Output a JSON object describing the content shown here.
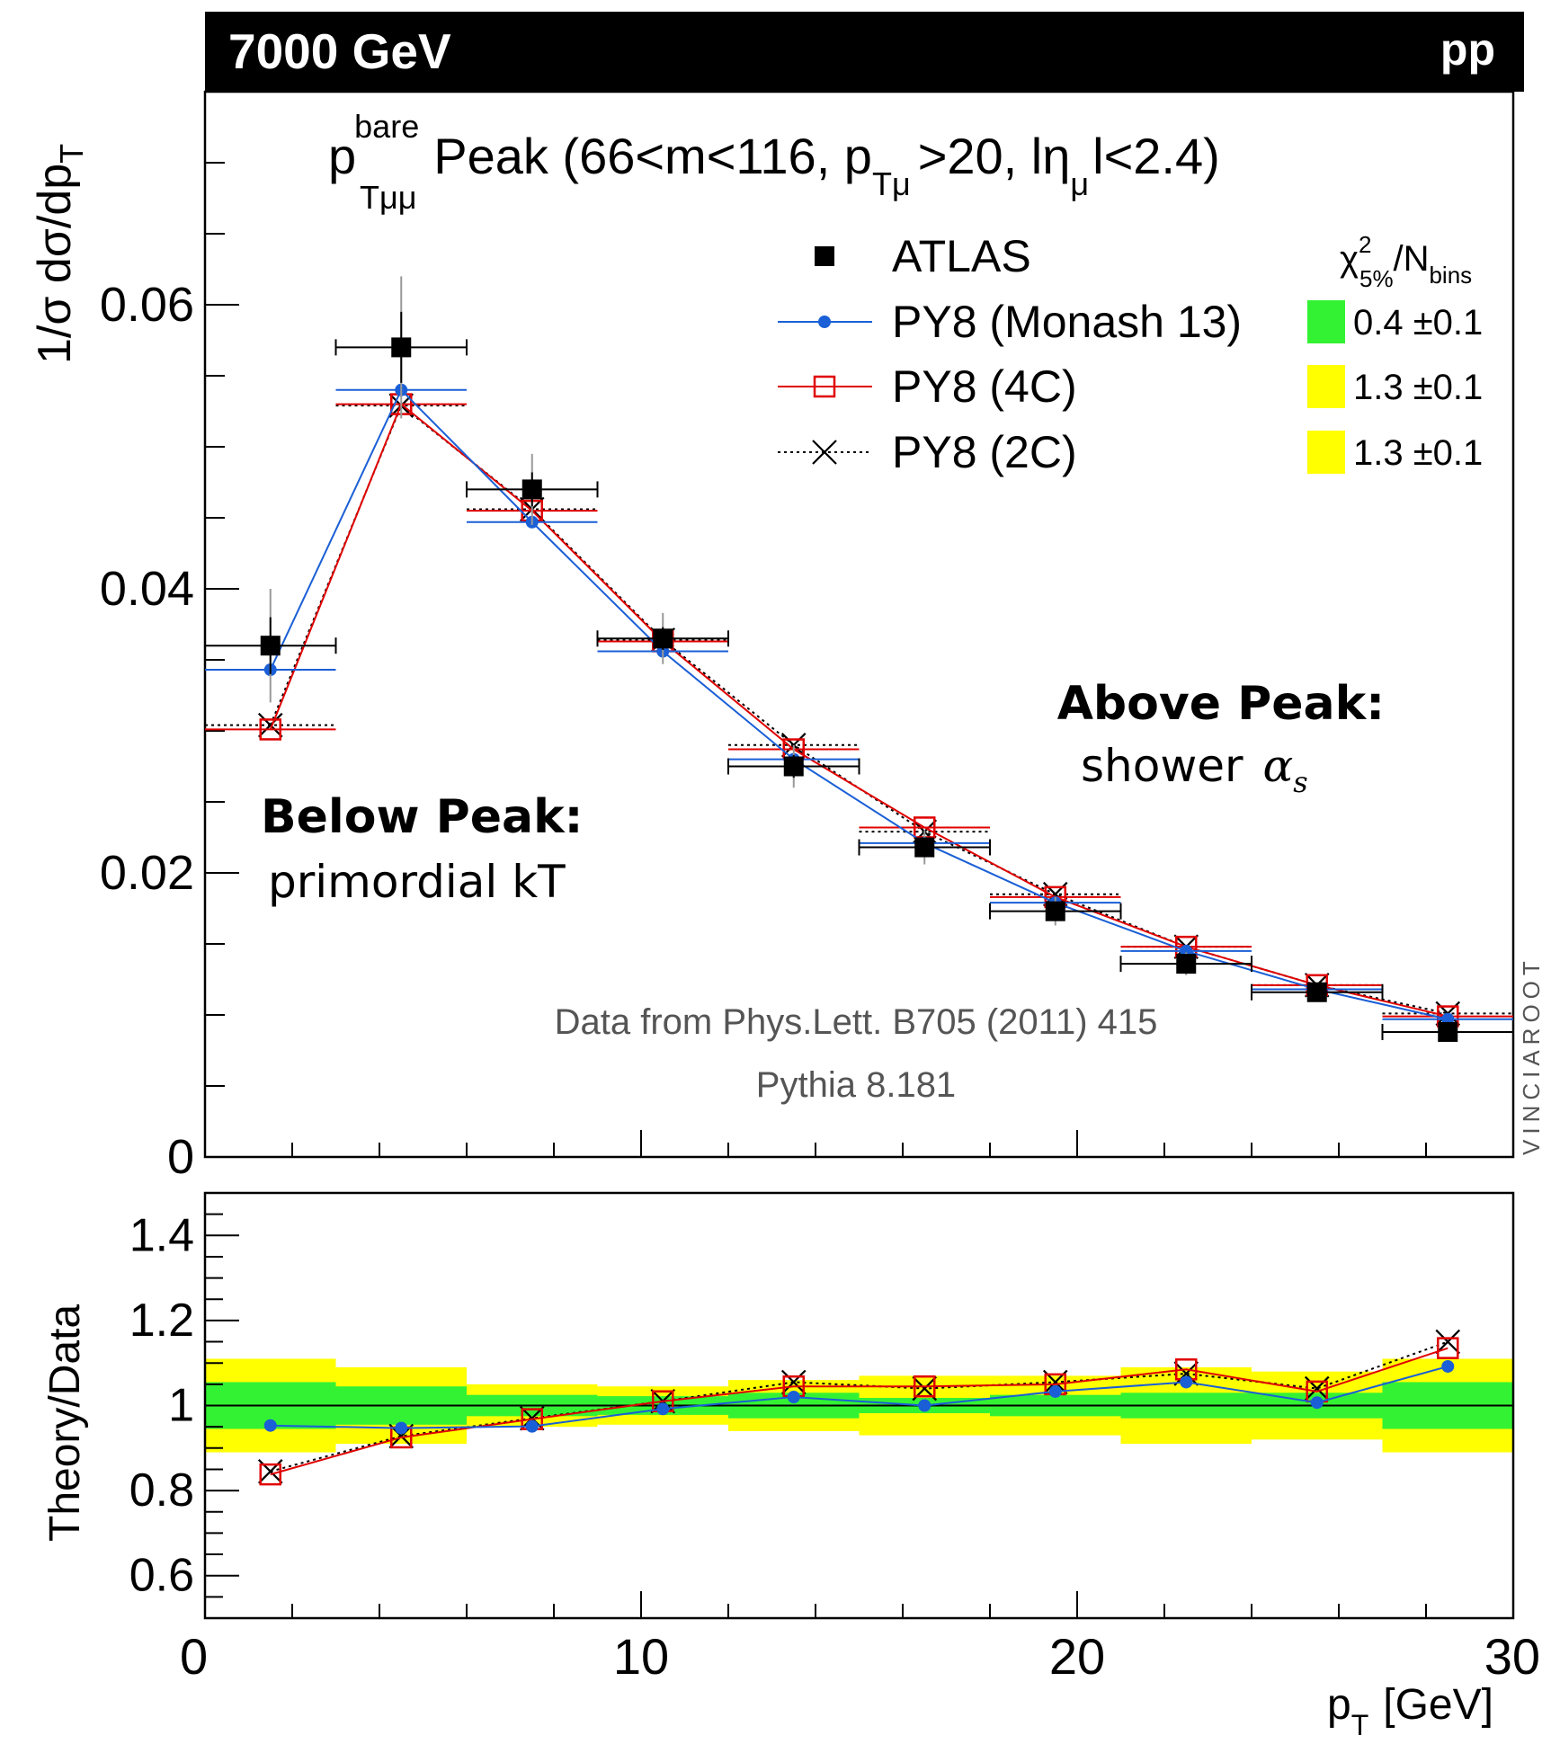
{
  "header": {
    "energy": "7000 GeV",
    "beam": "pp"
  },
  "colors": {
    "data": "#000000",
    "monash": "#1a5fd6",
    "c4": "#e00000",
    "c2": "#000000",
    "band_inner": "#33f233",
    "band_outer": "#ffff00",
    "header_bg": "#000000"
  },
  "title": {
    "main_p": "p",
    "main_sup": "bare",
    "main_sub": "Tμμ",
    "main_rest": "Peak (66<m<116, p",
    "sub2": "Tμ",
    "rest2": ">20, lη",
    "sub3": "μ",
    "rest3": "l<2.4)"
  },
  "chi2_header": {
    "chi": "χ",
    "sup": "2",
    "sub": "5%",
    "n": "/N",
    "nsub": "bins"
  },
  "legend": [
    {
      "key": "data",
      "label": "ATLAS",
      "marker": "square-filled"
    },
    {
      "key": "monash",
      "label": "PY8 (Monash 13)",
      "marker": "circle-filled",
      "chi2": "0.4 ±0.1",
      "badge": "green"
    },
    {
      "key": "c4",
      "label": "PY8 (4C)",
      "marker": "square-open",
      "chi2": "1.3 ±0.1",
      "badge": "yellow"
    },
    {
      "key": "c2",
      "label": "PY8 (2C)",
      "marker": "cross",
      "chi2": "1.3 ±0.1",
      "badge": "yellow"
    }
  ],
  "annotations": {
    "above_peak_title": "Above Peak:",
    "above_peak_text": "shower",
    "above_peak_symbol": "α",
    "above_peak_sub": "s",
    "below_peak_title": "Below Peak:",
    "below_peak_text": "primordial kT",
    "source_1": "Data from Phys.Lett. B705 (2011) 415",
    "source_2": "Pythia 8.181",
    "watermark": "VINCIAROOT"
  },
  "chart_data": [
    {
      "type": "scatter",
      "panel": "main",
      "ylabel": "1/σ dσ/dp",
      "ylabel_sub": "T",
      "xlim": [
        0,
        30
      ],
      "ylim": [
        0,
        0.075
      ],
      "yticks": [
        0,
        0.02,
        0.04,
        0.06
      ],
      "ytick_labels": [
        "0",
        "0.02",
        "0.04",
        "0.06"
      ],
      "legend_position": "top-right",
      "bins": [
        [
          0,
          3
        ],
        [
          3,
          6
        ],
        [
          6,
          9
        ],
        [
          9,
          12
        ],
        [
          12,
          15
        ],
        [
          15,
          18
        ],
        [
          18,
          21
        ],
        [
          21,
          24
        ],
        [
          24,
          27
        ],
        [
          27,
          30
        ]
      ],
      "x": [
        1.5,
        4.5,
        7.5,
        10.5,
        13.5,
        16.5,
        19.5,
        22.5,
        25.5,
        28.5
      ],
      "series": [
        {
          "name": "ATLAS",
          "key": "data",
          "values": [
            0.036,
            0.057,
            0.047,
            0.0365,
            0.0275,
            0.0218,
            0.0173,
            0.0136,
            0.0116,
            0.0088
          ],
          "stat_err": [
            0.002,
            0.0025,
            0.0012,
            0.0008,
            0.0008,
            0.0004,
            0.0004,
            0.0003,
            0.0003,
            0.0003
          ],
          "total_err": [
            0.004,
            0.005,
            0.0025,
            0.0018,
            0.0015,
            0.0012,
            0.001,
            0.0008,
            0.0006,
            0.0005
          ]
        },
        {
          "name": "PY8 (Monash 13)",
          "key": "monash",
          "values": [
            0.0343,
            0.054,
            0.0447,
            0.0356,
            0.028,
            0.0221,
            0.0179,
            0.0145,
            0.0118,
            0.0097
          ]
        },
        {
          "name": "PY8 (4C)",
          "key": "c4",
          "values": [
            0.0301,
            0.053,
            0.0455,
            0.0363,
            0.0287,
            0.0232,
            0.0183,
            0.0148,
            0.0121,
            0.0099
          ]
        },
        {
          "name": "PY8 (2C)",
          "key": "c2",
          "values": [
            0.0304,
            0.0529,
            0.0456,
            0.0364,
            0.029,
            0.0229,
            0.0185,
            0.0148,
            0.0121,
            0.0101
          ]
        }
      ]
    },
    {
      "type": "scatter",
      "panel": "ratio",
      "xlabel": "p",
      "xlabel_sub": "T",
      "xlabel_unit": "[GeV]",
      "ylabel": "Theory/Data",
      "xlim": [
        0,
        30
      ],
      "ylim": [
        0.5,
        1.5
      ],
      "xticks": [
        0,
        10,
        20,
        30
      ],
      "xtick_labels": [
        "0",
        "10",
        "20",
        "30"
      ],
      "yticks": [
        0.6,
        0.8,
        1,
        1.2,
        1.4
      ],
      "ytick_labels": [
        "0.6",
        "0.8",
        "1",
        "1.2",
        "1.4"
      ],
      "x": [
        1.5,
        4.5,
        7.5,
        10.5,
        13.5,
        16.5,
        19.5,
        22.5,
        25.5,
        28.5
      ],
      "band_inner": [
        0.055,
        0.045,
        0.025,
        0.022,
        0.03,
        0.018,
        0.025,
        0.03,
        0.03,
        0.055
      ],
      "band_outer": [
        0.11,
        0.09,
        0.05,
        0.045,
        0.06,
        0.07,
        0.07,
        0.09,
        0.08,
        0.11
      ],
      "series": [
        {
          "name": "PY8 (Monash 13)",
          "key": "monash",
          "values": [
            0.953,
            0.947,
            0.951,
            0.992,
            1.02,
            1.0,
            1.033,
            1.055,
            1.007,
            1.092
          ]
        },
        {
          "name": "PY8 (4C)",
          "key": "c4",
          "values": [
            0.838,
            0.925,
            0.968,
            1.01,
            1.045,
            1.045,
            1.05,
            1.085,
            1.033,
            1.135
          ]
        },
        {
          "name": "PY8 (2C)",
          "key": "c2",
          "values": [
            0.845,
            0.928,
            0.97,
            1.01,
            1.055,
            1.04,
            1.055,
            1.075,
            1.04,
            1.15
          ]
        }
      ]
    }
  ]
}
